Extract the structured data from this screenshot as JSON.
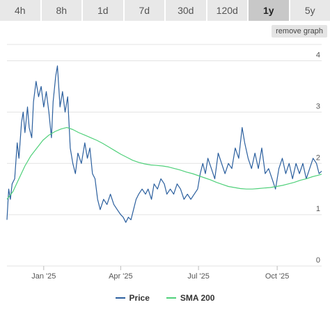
{
  "timeframe_tabs": [
    {
      "label": "4h",
      "active": false
    },
    {
      "label": "8h",
      "active": false
    },
    {
      "label": "1d",
      "active": false
    },
    {
      "label": "7d",
      "active": false
    },
    {
      "label": "30d",
      "active": false
    },
    {
      "label": "120d",
      "active": false
    },
    {
      "label": "1y",
      "active": true
    },
    {
      "label": "5y",
      "active": false
    }
  ],
  "remove_graph_label": "remove graph",
  "colors": {
    "price": "#2b5f9e",
    "sma": "#4fd07a",
    "grid": "#e3e3e3",
    "axis_text": "#555555",
    "tab_bg": "#e8e8e8",
    "tab_active_bg": "#c8c8c8"
  },
  "chart_data": {
    "type": "line",
    "title": "",
    "xlabel": "",
    "ylabel": "",
    "ylim": [
      0,
      4.4
    ],
    "xlim": [
      "2024-11-19",
      "2025-11-22"
    ],
    "y_ticks": [
      0,
      1,
      2,
      3,
      4
    ],
    "x_ticks": [
      {
        "label": "Jan '25",
        "date": "2025-01-01"
      },
      {
        "label": "Apr '25",
        "date": "2025-04-01"
      },
      {
        "label": "Jul '25",
        "date": "2025-07-01"
      },
      {
        "label": "Oct '25",
        "date": "2025-10-01"
      }
    ],
    "grid": true,
    "legend_position": "bottom",
    "series": [
      {
        "name": "Price",
        "points": [
          [
            "2024-11-19",
            0.9
          ],
          [
            "2024-11-21",
            1.5
          ],
          [
            "2024-11-23",
            1.3
          ],
          [
            "2024-11-25",
            1.6
          ],
          [
            "2024-11-28",
            1.7
          ],
          [
            "2024-12-01",
            2.4
          ],
          [
            "2024-12-03",
            2.1
          ],
          [
            "2024-12-06",
            2.8
          ],
          [
            "2024-12-08",
            3.0
          ],
          [
            "2024-12-10",
            2.6
          ],
          [
            "2024-12-13",
            3.1
          ],
          [
            "2024-12-15",
            2.7
          ],
          [
            "2024-12-18",
            2.5
          ],
          [
            "2024-12-20",
            3.2
          ],
          [
            "2024-12-23",
            3.6
          ],
          [
            "2024-12-26",
            3.3
          ],
          [
            "2024-12-29",
            3.5
          ],
          [
            "2025-01-01",
            3.1
          ],
          [
            "2025-01-04",
            3.4
          ],
          [
            "2025-01-07",
            3.0
          ],
          [
            "2025-01-10",
            2.5
          ],
          [
            "2025-01-12",
            3.2
          ],
          [
            "2025-01-15",
            3.7
          ],
          [
            "2025-01-17",
            3.9
          ],
          [
            "2025-01-20",
            3.1
          ],
          [
            "2025-01-23",
            3.4
          ],
          [
            "2025-01-26",
            3.0
          ],
          [
            "2025-01-29",
            3.3
          ],
          [
            "2025-02-01",
            2.3
          ],
          [
            "2025-02-04",
            2.0
          ],
          [
            "2025-02-07",
            1.8
          ],
          [
            "2025-02-10",
            2.2
          ],
          [
            "2025-02-14",
            2.0
          ],
          [
            "2025-02-18",
            2.4
          ],
          [
            "2025-02-21",
            2.1
          ],
          [
            "2025-02-24",
            2.3
          ],
          [
            "2025-02-27",
            1.8
          ],
          [
            "2025-03-02",
            1.7
          ],
          [
            "2025-03-05",
            1.3
          ],
          [
            "2025-03-08",
            1.1
          ],
          [
            "2025-03-12",
            1.3
          ],
          [
            "2025-03-16",
            1.2
          ],
          [
            "2025-03-20",
            1.4
          ],
          [
            "2025-03-24",
            1.2
          ],
          [
            "2025-03-28",
            1.1
          ],
          [
            "2025-04-01",
            1.0
          ],
          [
            "2025-04-04",
            0.95
          ],
          [
            "2025-04-07",
            0.85
          ],
          [
            "2025-04-10",
            0.95
          ],
          [
            "2025-04-13",
            0.9
          ],
          [
            "2025-04-16",
            1.1
          ],
          [
            "2025-04-19",
            1.3
          ],
          [
            "2025-04-22",
            1.4
          ],
          [
            "2025-04-26",
            1.5
          ],
          [
            "2025-04-30",
            1.4
          ],
          [
            "2025-05-03",
            1.5
          ],
          [
            "2025-05-07",
            1.3
          ],
          [
            "2025-05-10",
            1.6
          ],
          [
            "2025-05-14",
            1.5
          ],
          [
            "2025-05-18",
            1.7
          ],
          [
            "2025-05-22",
            1.6
          ],
          [
            "2025-05-25",
            1.4
          ],
          [
            "2025-05-29",
            1.5
          ],
          [
            "2025-06-02",
            1.4
          ],
          [
            "2025-06-06",
            1.6
          ],
          [
            "2025-06-10",
            1.5
          ],
          [
            "2025-06-14",
            1.3
          ],
          [
            "2025-06-18",
            1.4
          ],
          [
            "2025-06-22",
            1.3
          ],
          [
            "2025-06-26",
            1.4
          ],
          [
            "2025-06-30",
            1.5
          ],
          [
            "2025-07-03",
            1.8
          ],
          [
            "2025-07-06",
            2.0
          ],
          [
            "2025-07-09",
            1.8
          ],
          [
            "2025-07-12",
            2.1
          ],
          [
            "2025-07-16",
            1.9
          ],
          [
            "2025-07-20",
            1.7
          ],
          [
            "2025-07-24",
            2.2
          ],
          [
            "2025-07-28",
            2.0
          ],
          [
            "2025-08-01",
            1.8
          ],
          [
            "2025-08-05",
            2.0
          ],
          [
            "2025-08-09",
            1.9
          ],
          [
            "2025-08-13",
            2.3
          ],
          [
            "2025-08-17",
            2.1
          ],
          [
            "2025-08-21",
            2.7
          ],
          [
            "2025-08-24",
            2.4
          ],
          [
            "2025-08-28",
            2.1
          ],
          [
            "2025-09-01",
            1.9
          ],
          [
            "2025-09-05",
            2.2
          ],
          [
            "2025-09-09",
            1.9
          ],
          [
            "2025-09-13",
            2.3
          ],
          [
            "2025-09-17",
            1.8
          ],
          [
            "2025-09-21",
            1.9
          ],
          [
            "2025-09-25",
            1.7
          ],
          [
            "2025-09-29",
            1.5
          ],
          [
            "2025-10-03",
            1.9
          ],
          [
            "2025-10-07",
            2.1
          ],
          [
            "2025-10-11",
            1.8
          ],
          [
            "2025-10-15",
            2.0
          ],
          [
            "2025-10-19",
            1.7
          ],
          [
            "2025-10-23",
            2.0
          ],
          [
            "2025-10-27",
            1.8
          ],
          [
            "2025-10-31",
            2.0
          ],
          [
            "2025-11-04",
            1.7
          ],
          [
            "2025-11-08",
            1.9
          ],
          [
            "2025-11-12",
            2.1
          ],
          [
            "2025-11-16",
            2.0
          ],
          [
            "2025-11-19",
            1.8
          ],
          [
            "2025-11-22",
            1.85
          ]
        ]
      },
      {
        "name": "SMA 200",
        "points": [
          [
            "2024-11-19",
            1.3
          ],
          [
            "2024-11-26",
            1.45
          ],
          [
            "2024-12-03",
            1.7
          ],
          [
            "2024-12-10",
            1.95
          ],
          [
            "2024-12-17",
            2.15
          ],
          [
            "2024-12-24",
            2.3
          ],
          [
            "2024-12-31",
            2.45
          ],
          [
            "2025-01-07",
            2.55
          ],
          [
            "2025-01-14",
            2.62
          ],
          [
            "2025-01-21",
            2.67
          ],
          [
            "2025-01-28",
            2.7
          ],
          [
            "2025-02-04",
            2.66
          ],
          [
            "2025-02-11",
            2.6
          ],
          [
            "2025-02-18",
            2.55
          ],
          [
            "2025-02-25",
            2.5
          ],
          [
            "2025-03-04",
            2.45
          ],
          [
            "2025-03-11",
            2.39
          ],
          [
            "2025-03-18",
            2.32
          ],
          [
            "2025-03-25",
            2.25
          ],
          [
            "2025-04-01",
            2.18
          ],
          [
            "2025-04-08",
            2.12
          ],
          [
            "2025-04-15",
            2.06
          ],
          [
            "2025-04-22",
            2.02
          ],
          [
            "2025-04-29",
            1.99
          ],
          [
            "2025-05-06",
            1.97
          ],
          [
            "2025-05-13",
            1.96
          ],
          [
            "2025-05-20",
            1.95
          ],
          [
            "2025-05-27",
            1.93
          ],
          [
            "2025-06-03",
            1.9
          ],
          [
            "2025-06-10",
            1.87
          ],
          [
            "2025-06-17",
            1.83
          ],
          [
            "2025-06-24",
            1.8
          ],
          [
            "2025-07-01",
            1.76
          ],
          [
            "2025-07-08",
            1.72
          ],
          [
            "2025-07-15",
            1.68
          ],
          [
            "2025-07-22",
            1.63
          ],
          [
            "2025-07-29",
            1.59
          ],
          [
            "2025-08-05",
            1.55
          ],
          [
            "2025-08-12",
            1.53
          ],
          [
            "2025-08-19",
            1.51
          ],
          [
            "2025-08-26",
            1.5
          ],
          [
            "2025-09-02",
            1.5
          ],
          [
            "2025-09-09",
            1.51
          ],
          [
            "2025-09-16",
            1.52
          ],
          [
            "2025-09-23",
            1.53
          ],
          [
            "2025-09-30",
            1.55
          ],
          [
            "2025-10-07",
            1.57
          ],
          [
            "2025-10-14",
            1.6
          ],
          [
            "2025-10-21",
            1.63
          ],
          [
            "2025-10-28",
            1.67
          ],
          [
            "2025-11-04",
            1.7
          ],
          [
            "2025-11-11",
            1.74
          ],
          [
            "2025-11-18",
            1.77
          ],
          [
            "2025-11-22",
            1.79
          ]
        ]
      }
    ]
  }
}
